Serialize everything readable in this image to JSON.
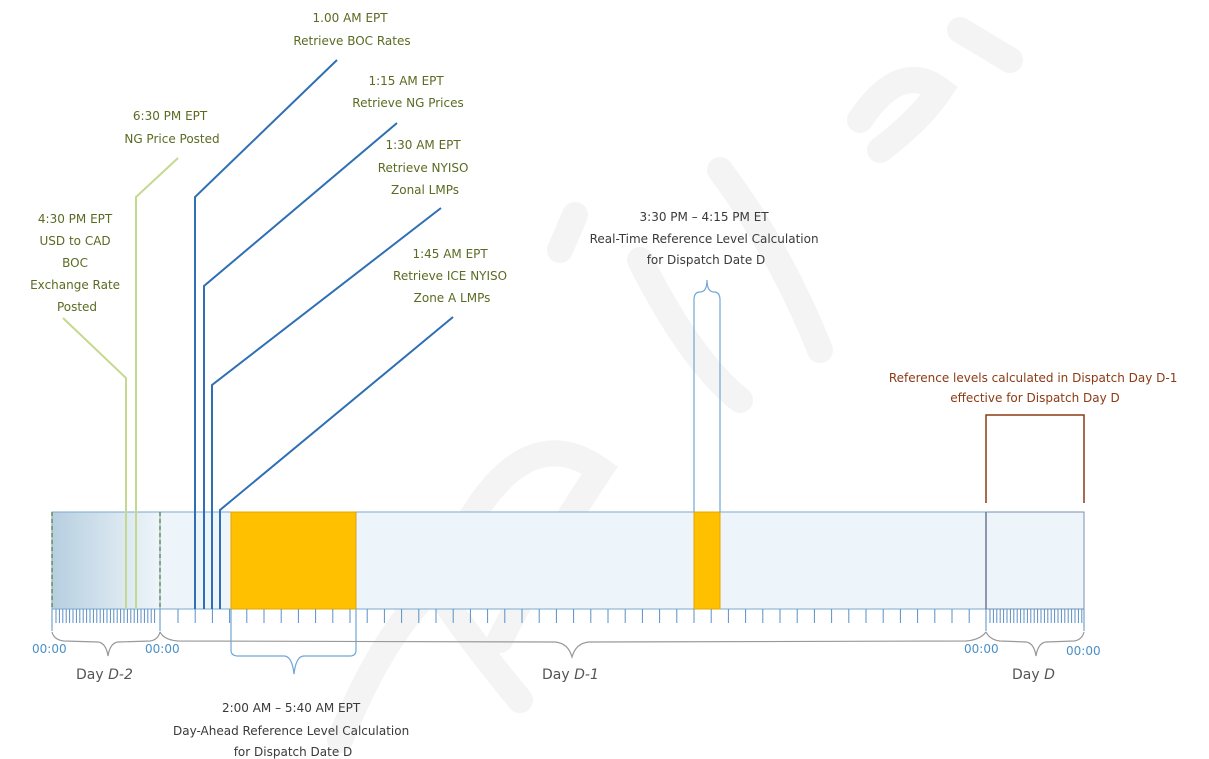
{
  "annotations": {
    "boc_rates": [
      "1.00 AM EPT",
      "Retrieve BOC Rates"
    ],
    "ng_prices": [
      "1:15 AM EPT",
      "Retrieve NG Prices"
    ],
    "nyiso_lmps": [
      "1:30 AM EPT",
      "Retrieve NYISO",
      "Zonal LMPs"
    ],
    "ice_lmps": [
      "1:45 AM EPT",
      "Retrieve ICE NYISO",
      "Zone A LMPs"
    ],
    "ng_posted": [
      "6:30 PM EPT",
      "NG Price Posted"
    ],
    "exchange_posted": [
      "4:30 PM EPT",
      "USD to CAD",
      "BOC",
      "Exchange Rate",
      "Posted"
    ],
    "realtime_calc": [
      "3:30 PM – 4:15 PM ET",
      "Real-Time Reference Level Calculation",
      "for Dispatch Date D"
    ],
    "day_ahead_calc": [
      "2:00 AM – 5:40 AM EPT",
      "Day-Ahead Reference Level Calculation",
      "for Dispatch Date D"
    ],
    "reference_levels": [
      "Reference levels calculated in Dispatch Day D-1",
      "effective for Dispatch Day D"
    ]
  },
  "time_labels": {
    "t1": "00:00",
    "t2": "00:00",
    "t3": "00:00",
    "t4": "00:00"
  },
  "days": {
    "d2": {
      "prefix": "Day ",
      "italic": "D-2"
    },
    "d1": {
      "prefix": "Day ",
      "italic": "D-1"
    },
    "d0": {
      "prefix": "Day ",
      "italic": "D"
    }
  },
  "colors": {
    "blue_line": "#2f6fb4",
    "green_line": "#c5d88f",
    "orange_block": "#ffc000",
    "timeline_fill": "#eef5fa",
    "timeline_stroke": "#7aaad0",
    "olive_text": "#5a6b22",
    "brown": "#8b3a14"
  }
}
